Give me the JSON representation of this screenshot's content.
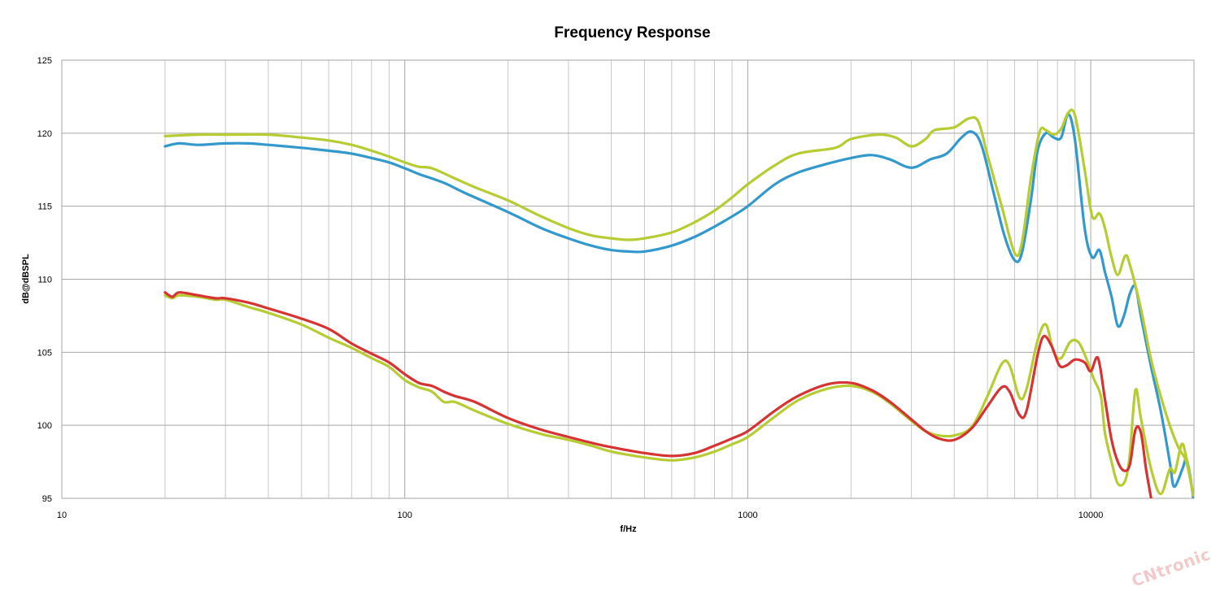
{
  "chart_data": {
    "type": "line",
    "title": "Frequency Response",
    "xlabel": "f/Hz",
    "ylabel": "dB@dBSPL",
    "x_scale": "log",
    "xlim": [
      10,
      20000
    ],
    "ylim": [
      95,
      125
    ],
    "x_ticks": [
      "10",
      "100",
      "1000",
      "10000"
    ],
    "y_ticks": [
      "95",
      "100",
      "105",
      "110",
      "115",
      "120",
      "125"
    ],
    "grid": true,
    "colors": {
      "blue": "#3399cc",
      "green": "#b7cc33",
      "red": "#d63333"
    },
    "series": [
      {
        "color": "#3399cc",
        "points": [
          [
            20,
            119.1
          ],
          [
            22,
            119.3
          ],
          [
            25,
            119.2
          ],
          [
            30,
            119.3
          ],
          [
            35,
            119.3
          ],
          [
            40,
            119.2
          ],
          [
            50,
            119.0
          ],
          [
            60,
            118.8
          ],
          [
            70,
            118.6
          ],
          [
            80,
            118.3
          ],
          [
            90,
            118.0
          ],
          [
            100,
            117.6
          ],
          [
            110,
            117.2
          ],
          [
            130,
            116.6
          ],
          [
            150,
            115.9
          ],
          [
            200,
            114.6
          ],
          [
            250,
            113.5
          ],
          [
            300,
            112.8
          ],
          [
            350,
            112.3
          ],
          [
            400,
            112.0
          ],
          [
            450,
            111.9
          ],
          [
            500,
            111.9
          ],
          [
            600,
            112.3
          ],
          [
            700,
            112.9
          ],
          [
            800,
            113.6
          ],
          [
            900,
            114.3
          ],
          [
            1000,
            115.0
          ],
          [
            1200,
            116.5
          ],
          [
            1400,
            117.3
          ],
          [
            1700,
            117.9
          ],
          [
            2000,
            118.3
          ],
          [
            2300,
            118.5
          ],
          [
            2600,
            118.2
          ],
          [
            2900,
            117.7
          ],
          [
            3100,
            117.7
          ],
          [
            3400,
            118.2
          ],
          [
            3800,
            118.6
          ],
          [
            4200,
            119.7
          ],
          [
            4500,
            120.1
          ],
          [
            4800,
            119.2
          ],
          [
            5200,
            116.0
          ],
          [
            5600,
            113.0
          ],
          [
            6000,
            111.3
          ],
          [
            6300,
            111.8
          ],
          [
            6700,
            115.5
          ],
          [
            7000,
            118.8
          ],
          [
            7400,
            120.0
          ],
          [
            7800,
            119.7
          ],
          [
            8200,
            119.7
          ],
          [
            8600,
            121.3
          ],
          [
            9000,
            119.5
          ],
          [
            9600,
            113.5
          ],
          [
            10100,
            111.5
          ],
          [
            10600,
            112.0
          ],
          [
            11000,
            110.5
          ],
          [
            11500,
            108.8
          ],
          [
            12000,
            106.8
          ],
          [
            12500,
            107.5
          ],
          [
            13000,
            109.0
          ],
          [
            13500,
            109.5
          ],
          [
            14000,
            107.5
          ],
          [
            15000,
            104.0
          ],
          [
            16000,
            101.0
          ],
          [
            17000,
            97.5
          ],
          [
            17500,
            95.8
          ],
          [
            18500,
            97.0
          ],
          [
            19000,
            97.7
          ],
          [
            19500,
            96.5
          ],
          [
            19900,
            95.0
          ]
        ]
      },
      {
        "color": "#b7cc33",
        "points": [
          [
            20,
            119.8
          ],
          [
            25,
            119.9
          ],
          [
            30,
            119.9
          ],
          [
            40,
            119.9
          ],
          [
            50,
            119.7
          ],
          [
            60,
            119.5
          ],
          [
            70,
            119.2
          ],
          [
            80,
            118.8
          ],
          [
            90,
            118.4
          ],
          [
            100,
            118.0
          ],
          [
            110,
            117.7
          ],
          [
            120,
            117.6
          ],
          [
            140,
            116.9
          ],
          [
            160,
            116.3
          ],
          [
            200,
            115.4
          ],
          [
            250,
            114.3
          ],
          [
            300,
            113.5
          ],
          [
            350,
            113.0
          ],
          [
            400,
            112.8
          ],
          [
            450,
            112.7
          ],
          [
            500,
            112.8
          ],
          [
            600,
            113.2
          ],
          [
            700,
            113.9
          ],
          [
            800,
            114.7
          ],
          [
            900,
            115.6
          ],
          [
            1000,
            116.5
          ],
          [
            1200,
            117.8
          ],
          [
            1400,
            118.6
          ],
          [
            1800,
            119.0
          ],
          [
            2000,
            119.6
          ],
          [
            2400,
            119.9
          ],
          [
            2700,
            119.7
          ],
          [
            3000,
            119.1
          ],
          [
            3300,
            119.6
          ],
          [
            3500,
            120.2
          ],
          [
            4000,
            120.4
          ],
          [
            4400,
            121.0
          ],
          [
            4700,
            120.8
          ],
          [
            5000,
            118.5
          ],
          [
            5500,
            115.0
          ],
          [
            6000,
            111.8
          ],
          [
            6300,
            112.5
          ],
          [
            6700,
            117.0
          ],
          [
            7100,
            120.1
          ],
          [
            7400,
            120.2
          ],
          [
            7800,
            119.9
          ],
          [
            8200,
            120.3
          ],
          [
            8600,
            121.4
          ],
          [
            9000,
            121.2
          ],
          [
            9600,
            117.5
          ],
          [
            10100,
            114.3
          ],
          [
            10600,
            114.5
          ],
          [
            11000,
            113.5
          ],
          [
            11500,
            111.5
          ],
          [
            12000,
            110.3
          ],
          [
            12600,
            111.6
          ],
          [
            13000,
            111.0
          ],
          [
            14000,
            108.0
          ],
          [
            15000,
            104.5
          ],
          [
            16000,
            102.0
          ],
          [
            17000,
            100.0
          ],
          [
            18000,
            98.5
          ],
          [
            19000,
            97.5
          ],
          [
            19900,
            95.2
          ]
        ]
      },
      {
        "color": "#b7cc33",
        "points": [
          [
            20,
            108.9
          ],
          [
            21,
            108.7
          ],
          [
            22,
            108.9
          ],
          [
            25,
            108.8
          ],
          [
            28,
            108.6
          ],
          [
            30,
            108.6
          ],
          [
            35,
            108.1
          ],
          [
            40,
            107.7
          ],
          [
            50,
            106.9
          ],
          [
            60,
            106.0
          ],
          [
            70,
            105.3
          ],
          [
            80,
            104.6
          ],
          [
            90,
            104.0
          ],
          [
            100,
            103.1
          ],
          [
            110,
            102.6
          ],
          [
            120,
            102.3
          ],
          [
            130,
            101.6
          ],
          [
            140,
            101.6
          ],
          [
            160,
            101.0
          ],
          [
            200,
            100.1
          ],
          [
            250,
            99.4
          ],
          [
            300,
            99.0
          ],
          [
            350,
            98.6
          ],
          [
            400,
            98.2
          ],
          [
            500,
            97.8
          ],
          [
            600,
            97.6
          ],
          [
            700,
            97.8
          ],
          [
            800,
            98.2
          ],
          [
            900,
            98.7
          ],
          [
            1000,
            99.2
          ],
          [
            1200,
            100.6
          ],
          [
            1400,
            101.7
          ],
          [
            1700,
            102.5
          ],
          [
            2000,
            102.7
          ],
          [
            2300,
            102.3
          ],
          [
            2600,
            101.5
          ],
          [
            3000,
            100.3
          ],
          [
            3300,
            99.6
          ],
          [
            3600,
            99.3
          ],
          [
            4000,
            99.3
          ],
          [
            4500,
            99.9
          ],
          [
            5000,
            102.0
          ],
          [
            5500,
            104.2
          ],
          [
            5800,
            104.1
          ],
          [
            6200,
            101.9
          ],
          [
            6500,
            102.5
          ],
          [
            7000,
            105.8
          ],
          [
            7400,
            106.9
          ],
          [
            7800,
            105.0
          ],
          [
            8200,
            104.6
          ],
          [
            8700,
            105.7
          ],
          [
            9200,
            105.7
          ],
          [
            9700,
            104.6
          ],
          [
            10200,
            103.2
          ],
          [
            10700,
            102.0
          ],
          [
            11000,
            99.5
          ],
          [
            11500,
            97.5
          ],
          [
            12000,
            96.0
          ],
          [
            12600,
            96.2
          ],
          [
            13000,
            98.0
          ],
          [
            13500,
            102.4
          ],
          [
            14000,
            100.5
          ],
          [
            15000,
            97.0
          ],
          [
            16000,
            95.3
          ],
          [
            17000,
            97.0
          ],
          [
            17600,
            96.8
          ],
          [
            18400,
            98.7
          ],
          [
            19000,
            97.8
          ],
          [
            19900,
            95.2
          ]
        ]
      },
      {
        "color": "#d63333",
        "points": [
          [
            20,
            109.1
          ],
          [
            21,
            108.8
          ],
          [
            22,
            109.1
          ],
          [
            25,
            108.9
          ],
          [
            28,
            108.7
          ],
          [
            30,
            108.7
          ],
          [
            35,
            108.4
          ],
          [
            40,
            108.0
          ],
          [
            50,
            107.3
          ],
          [
            60,
            106.6
          ],
          [
            70,
            105.6
          ],
          [
            80,
            104.9
          ],
          [
            90,
            104.3
          ],
          [
            100,
            103.5
          ],
          [
            110,
            102.9
          ],
          [
            120,
            102.7
          ],
          [
            130,
            102.3
          ],
          [
            140,
            102.0
          ],
          [
            160,
            101.6
          ],
          [
            200,
            100.5
          ],
          [
            250,
            99.7
          ],
          [
            300,
            99.2
          ],
          [
            350,
            98.8
          ],
          [
            400,
            98.5
          ],
          [
            500,
            98.1
          ],
          [
            600,
            97.9
          ],
          [
            700,
            98.1
          ],
          [
            800,
            98.6
          ],
          [
            900,
            99.1
          ],
          [
            1000,
            99.6
          ],
          [
            1200,
            101.0
          ],
          [
            1400,
            102.0
          ],
          [
            1700,
            102.8
          ],
          [
            2000,
            102.9
          ],
          [
            2300,
            102.4
          ],
          [
            2600,
            101.6
          ],
          [
            3000,
            100.4
          ],
          [
            3300,
            99.6
          ],
          [
            3600,
            99.1
          ],
          [
            4000,
            99.0
          ],
          [
            4500,
            99.8
          ],
          [
            5000,
            101.3
          ],
          [
            5500,
            102.6
          ],
          [
            5800,
            102.3
          ],
          [
            6200,
            100.7
          ],
          [
            6500,
            101.0
          ],
          [
            7000,
            104.8
          ],
          [
            7300,
            106.1
          ],
          [
            7700,
            105.4
          ],
          [
            8100,
            104.1
          ],
          [
            8500,
            104.1
          ],
          [
            9000,
            104.5
          ],
          [
            9600,
            104.3
          ],
          [
            10000,
            103.7
          ],
          [
            10500,
            104.6
          ],
          [
            11000,
            101.8
          ],
          [
            11500,
            99.0
          ],
          [
            12000,
            97.5
          ],
          [
            12500,
            96.9
          ],
          [
            13000,
            97.3
          ],
          [
            13500,
            99.7
          ],
          [
            14000,
            99.5
          ],
          [
            14500,
            97.0
          ],
          [
            15000,
            95.0
          ]
        ]
      }
    ]
  },
  "watermark": {
    "text": "CNtronic"
  }
}
